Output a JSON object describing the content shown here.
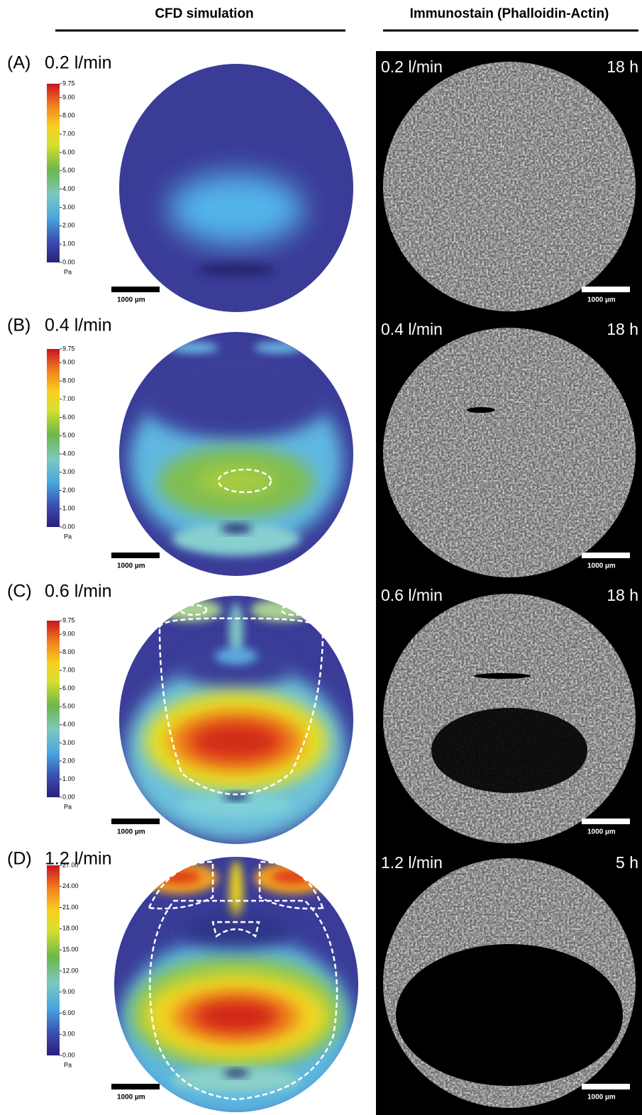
{
  "header": {
    "left": "CFD simulation",
    "right": "Immunostain (Phalloidin-Actin)"
  },
  "panels": [
    {
      "label": "(A)",
      "flow": "0.2 l/min",
      "colorbar": {
        "ticks": [
          "9.75",
          "9.00",
          "8.00",
          "7.00",
          "6.00",
          "5.00",
          "4.00",
          "3.00",
          "2.00",
          "1.00",
          "0.00"
        ],
        "unit": "Pa"
      },
      "scale_bar": "1000 µm",
      "stain": {
        "flow": "0.2 l/min",
        "time": "18 h",
        "scale_bar": "1000 µm"
      }
    },
    {
      "label": "(B)",
      "flow": "0.4 l/min",
      "colorbar": {
        "ticks": [
          "9.75",
          "9.00",
          "8.00",
          "7.00",
          "6.00",
          "5.00",
          "4.00",
          "3.00",
          "2.00",
          "1.00",
          "0.00"
        ],
        "unit": "Pa"
      },
      "scale_bar": "1000 µm",
      "stain": {
        "flow": "0.4 l/min",
        "time": "18 h",
        "scale_bar": "1000 µm"
      }
    },
    {
      "label": "(C)",
      "flow": "0.6 l/min",
      "colorbar": {
        "ticks": [
          "9.75",
          "9.00",
          "8.00",
          "7.00",
          "6.00",
          "5.00",
          "4.00",
          "3.00",
          "2.00",
          "1.00",
          "0.00"
        ],
        "unit": "Pa"
      },
      "scale_bar": "1000 µm",
      "stain": {
        "flow": "0.6 l/min",
        "time": "18 h",
        "scale_bar": "1000 µm"
      }
    },
    {
      "label": "(D)",
      "flow": "1.2 l/min",
      "colorbar": {
        "ticks": [
          "27.00",
          "24.00",
          "21.00",
          "18.00",
          "15.00",
          "12.00",
          "9.00",
          "6.00",
          "3.00",
          "0.00"
        ],
        "unit": "Pa"
      },
      "scale_bar": "1000 µm",
      "stain": {
        "flow": "1.2 l/min",
        "time": "5 h",
        "scale_bar": "1000 µm"
      }
    }
  ]
}
